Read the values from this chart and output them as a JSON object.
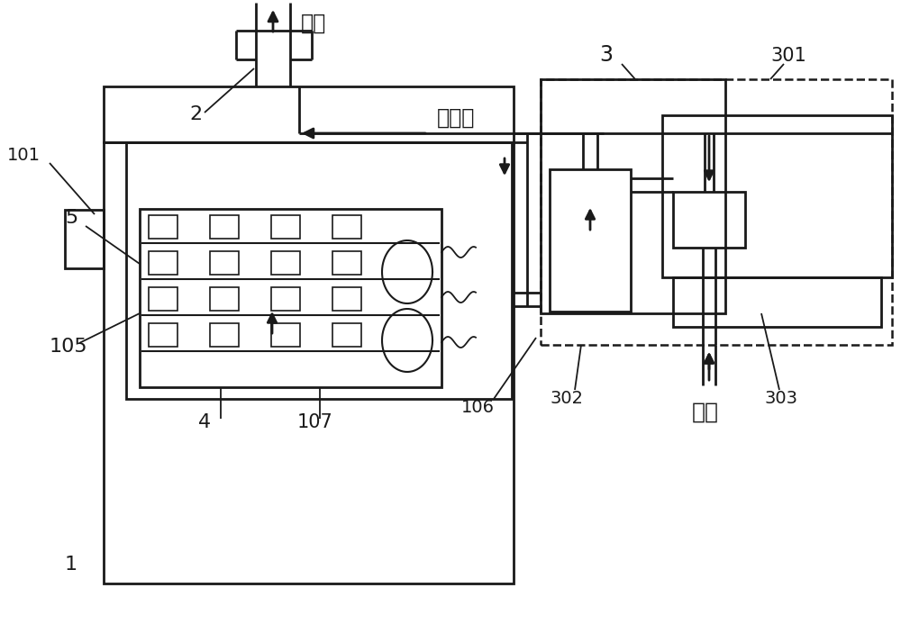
{
  "bg": "#ffffff",
  "lc": "#1a1a1a",
  "lw": 2.0,
  "labels": {
    "tail_gas": "尾气",
    "natural_gas": "天然气",
    "nitrogen": "氮气",
    "1": "1",
    "2": "2",
    "3": "3",
    "4": "4",
    "5": "5",
    "101": "101",
    "105": "105",
    "106": "106",
    "107": "107",
    "301": "301",
    "302": "302",
    "303": "303"
  }
}
